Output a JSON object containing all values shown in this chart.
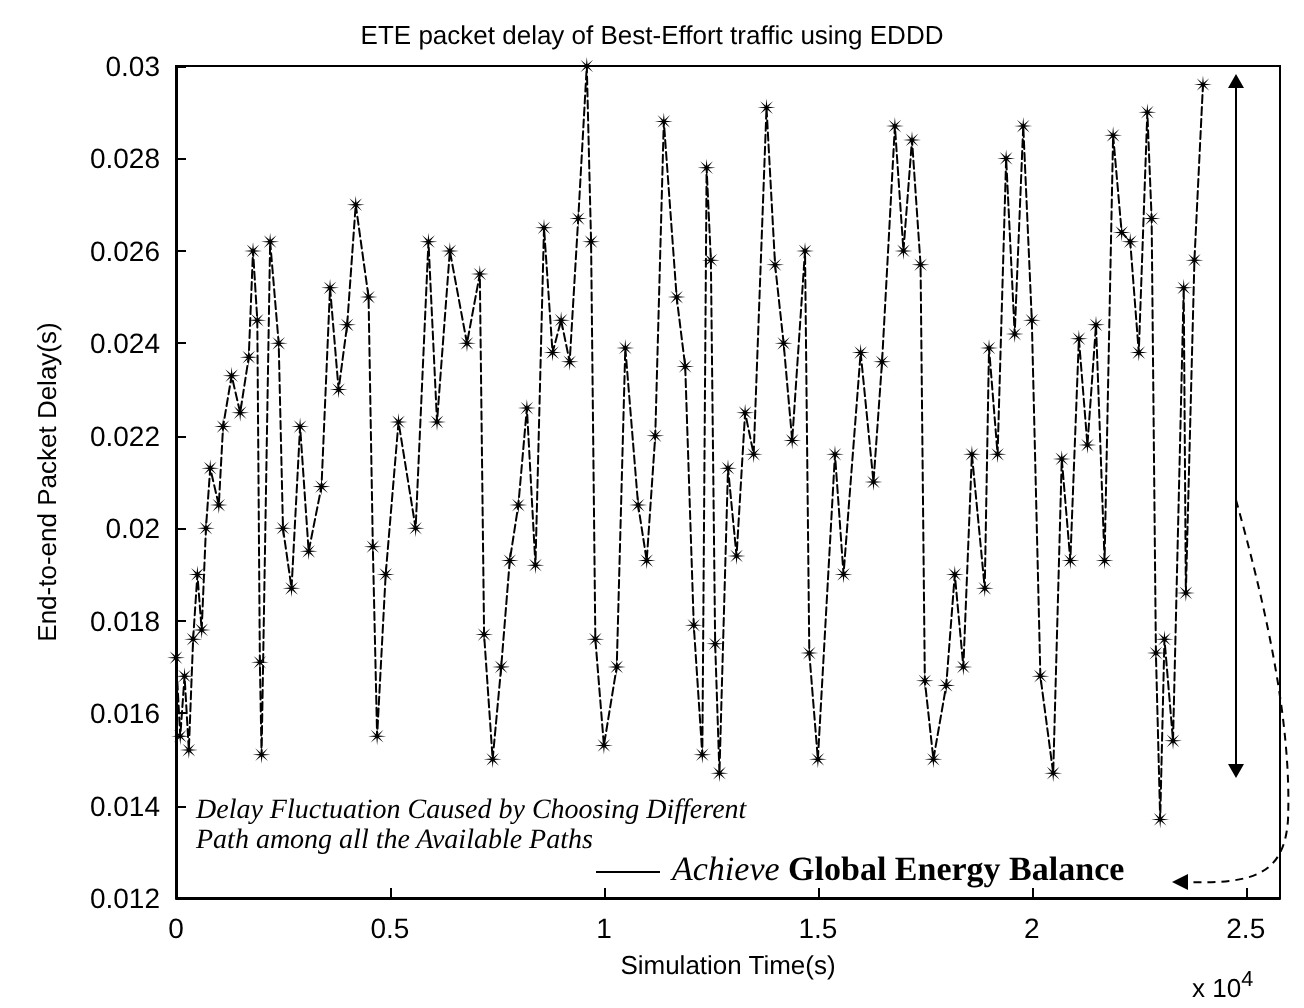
{
  "chart_data": {
    "type": "line",
    "title": "ETE packet delay of Best-Effort traffic using EDDD",
    "xlabel": "Simulation Time(s)",
    "ylabel": "End-to-end Packet Delay(s)",
    "annotations": [
      "Delay Fluctuation Caused by Choosing Different Path among all the Available Paths",
      "Achieve Global Energy Balance",
      "x 10$^{4}$"
    ],
    "xlim": [
      0,
      2.58
    ],
    "xticks": [
      0,
      0.5,
      1,
      1.5,
      2,
      2.5
    ],
    "ylim": [
      0.012,
      0.03
    ],
    "yticks": [
      0.012,
      0.014,
      0.016,
      0.018,
      0.02,
      0.022,
      0.024,
      0.026,
      0.028,
      0.03
    ],
    "grid": false,
    "marker": "cross",
    "line_style": "dashed",
    "series": [
      {
        "color": "#000000",
        "x": [
          0.0,
          0.01,
          0.02,
          0.03,
          0.04,
          0.05,
          0.06,
          0.07,
          0.08,
          0.1,
          0.11,
          0.13,
          0.15,
          0.17,
          0.18,
          0.19,
          0.196,
          0.2,
          0.22,
          0.24,
          0.25,
          0.27,
          0.29,
          0.31,
          0.34,
          0.36,
          0.38,
          0.4,
          0.42,
          0.45,
          0.46,
          0.47,
          0.49,
          0.52,
          0.56,
          0.59,
          0.61,
          0.64,
          0.68,
          0.71,
          0.72,
          0.74,
          0.76,
          0.78,
          0.8,
          0.82,
          0.84,
          0.86,
          0.88,
          0.9,
          0.92,
          0.94,
          0.96,
          0.97,
          0.98,
          1.0,
          1.03,
          1.05,
          1.08,
          1.1,
          1.12,
          1.14,
          1.17,
          1.19,
          1.21,
          1.23,
          1.24,
          1.25,
          1.26,
          1.27,
          1.29,
          1.31,
          1.33,
          1.35,
          1.38,
          1.4,
          1.42,
          1.44,
          1.47,
          1.48,
          1.5,
          1.54,
          1.56,
          1.6,
          1.63,
          1.65,
          1.68,
          1.7,
          1.72,
          1.74,
          1.75,
          1.77,
          1.8,
          1.82,
          1.84,
          1.86,
          1.89,
          1.9,
          1.92,
          1.94,
          1.96,
          1.98,
          2.0,
          2.02,
          2.05,
          2.07,
          2.09,
          2.11,
          2.13,
          2.15,
          2.17,
          2.19,
          2.21,
          2.23,
          2.25,
          2.27,
          2.28,
          2.29,
          2.3,
          2.31,
          2.33,
          2.355,
          2.36,
          2.38,
          2.4
        ],
        "values": [
          0.0172,
          0.0155,
          0.0168,
          0.0152,
          0.0176,
          0.019,
          0.0178,
          0.02,
          0.0213,
          0.0205,
          0.0222,
          0.0233,
          0.0225,
          0.0237,
          0.026,
          0.0245,
          0.0171,
          0.0151,
          0.0262,
          0.024,
          0.02,
          0.0187,
          0.0222,
          0.0195,
          0.0209,
          0.0252,
          0.023,
          0.0244,
          0.027,
          0.025,
          0.0196,
          0.0155,
          0.019,
          0.0223,
          0.02,
          0.0262,
          0.0223,
          0.026,
          0.024,
          0.0255,
          0.0177,
          0.015,
          0.017,
          0.0193,
          0.0205,
          0.0226,
          0.0192,
          0.0265,
          0.0238,
          0.0245,
          0.0236,
          0.0267,
          0.03,
          0.0262,
          0.0176,
          0.0153,
          0.017,
          0.0239,
          0.0205,
          0.0193,
          0.022,
          0.0288,
          0.025,
          0.0235,
          0.0179,
          0.0151,
          0.0278,
          0.0258,
          0.0175,
          0.0147,
          0.0213,
          0.0194,
          0.0225,
          0.0216,
          0.0291,
          0.0257,
          0.024,
          0.0219,
          0.026,
          0.0173,
          0.015,
          0.0216,
          0.019,
          0.0238,
          0.021,
          0.0236,
          0.0287,
          0.026,
          0.0284,
          0.0257,
          0.0167,
          0.015,
          0.0166,
          0.019,
          0.017,
          0.0216,
          0.0187,
          0.0239,
          0.0216,
          0.028,
          0.0242,
          0.0287,
          0.0245,
          0.0168,
          0.0147,
          0.0215,
          0.0193,
          0.0241,
          0.0218,
          0.0244,
          0.0193,
          0.0285,
          0.0264,
          0.0262,
          0.0238,
          0.029,
          0.0267,
          0.0173,
          0.0137,
          0.0176,
          0.0154,
          0.0252,
          0.0186,
          0.0258,
          0.0296
        ]
      }
    ]
  }
}
